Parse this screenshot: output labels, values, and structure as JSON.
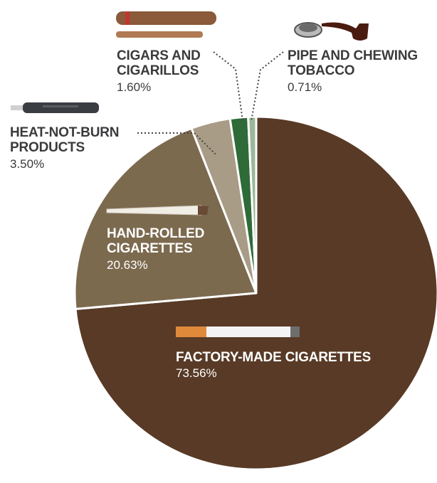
{
  "chart_data": {
    "type": "pie",
    "slices": [
      {
        "label": "Factory-made cigarettes",
        "display": "FACTORY-MADE CIGARETTES",
        "value": 73.56,
        "value_label": "73.56%",
        "color": "#583a26"
      },
      {
        "label": "Hand-rolled cigarettes",
        "display": "HAND-ROLLED\nCIGARETTES",
        "value": 20.63,
        "value_label": "20.63%",
        "color": "#7c6a4f"
      },
      {
        "label": "Heat-not-burn products",
        "display": "HEAT-NOT-BURN\nPRODUCTS",
        "value": 3.5,
        "value_label": "3.50%",
        "color": "#a89c86"
      },
      {
        "label": "Cigars and cigarillos",
        "display": "CIGARS AND\nCIGARILLOS",
        "value": 1.6,
        "value_label": "1.60%",
        "color": "#2e6b38"
      },
      {
        "label": "Pipe and chewing tobacco",
        "display": "PIPE AND CHEWING\nTOBACCO",
        "value": 0.71,
        "value_label": "0.71%",
        "color": "#9bb89a"
      }
    ],
    "start": "12 o'clock",
    "direction": "counterclockwise from factory-made cigarettes",
    "legend": "none, labels placed beside slices"
  },
  "icons": [
    "cigarette-icon",
    "rolled-cigarette-icon",
    "heat-not-burn-device-icon",
    "cigar-icon",
    "pipe-icon"
  ]
}
